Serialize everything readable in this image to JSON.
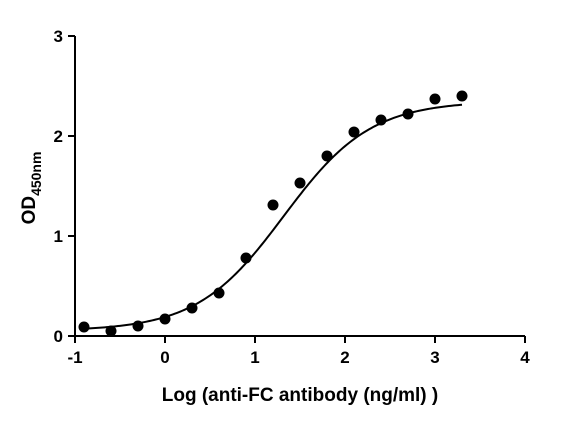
{
  "chart_data": {
    "type": "scatter",
    "xlabel": "Log (anti-FC antibody (ng/ml) )",
    "ylabel": {
      "main": "OD",
      "subscript": "450nm"
    },
    "xlim": [
      -1,
      4
    ],
    "ylim": [
      0,
      3
    ],
    "x_ticks": [
      "-1",
      "0",
      "1",
      "2",
      "3",
      "4"
    ],
    "y_ticks": [
      "0",
      "1",
      "2",
      "3"
    ],
    "grid": false,
    "series": [
      {
        "x": [
          -0.9,
          -0.6,
          -0.3,
          0.0,
          0.3,
          0.6,
          0.9,
          1.2,
          1.5,
          1.8,
          2.1,
          2.4,
          2.7,
          3.0,
          3.3
        ],
        "y": [
          0.09,
          0.05,
          0.1,
          0.17,
          0.28,
          0.43,
          0.78,
          1.31,
          1.53,
          1.8,
          2.04,
          2.16,
          2.22,
          2.37,
          2.4
        ]
      }
    ],
    "fit_curve": {
      "model": "4PL",
      "bottom": 0.05,
      "top": 2.35,
      "logEC50": 1.32,
      "hill_slope": 0.9
    },
    "marker_color": "#000000",
    "line_color": "#000000"
  }
}
